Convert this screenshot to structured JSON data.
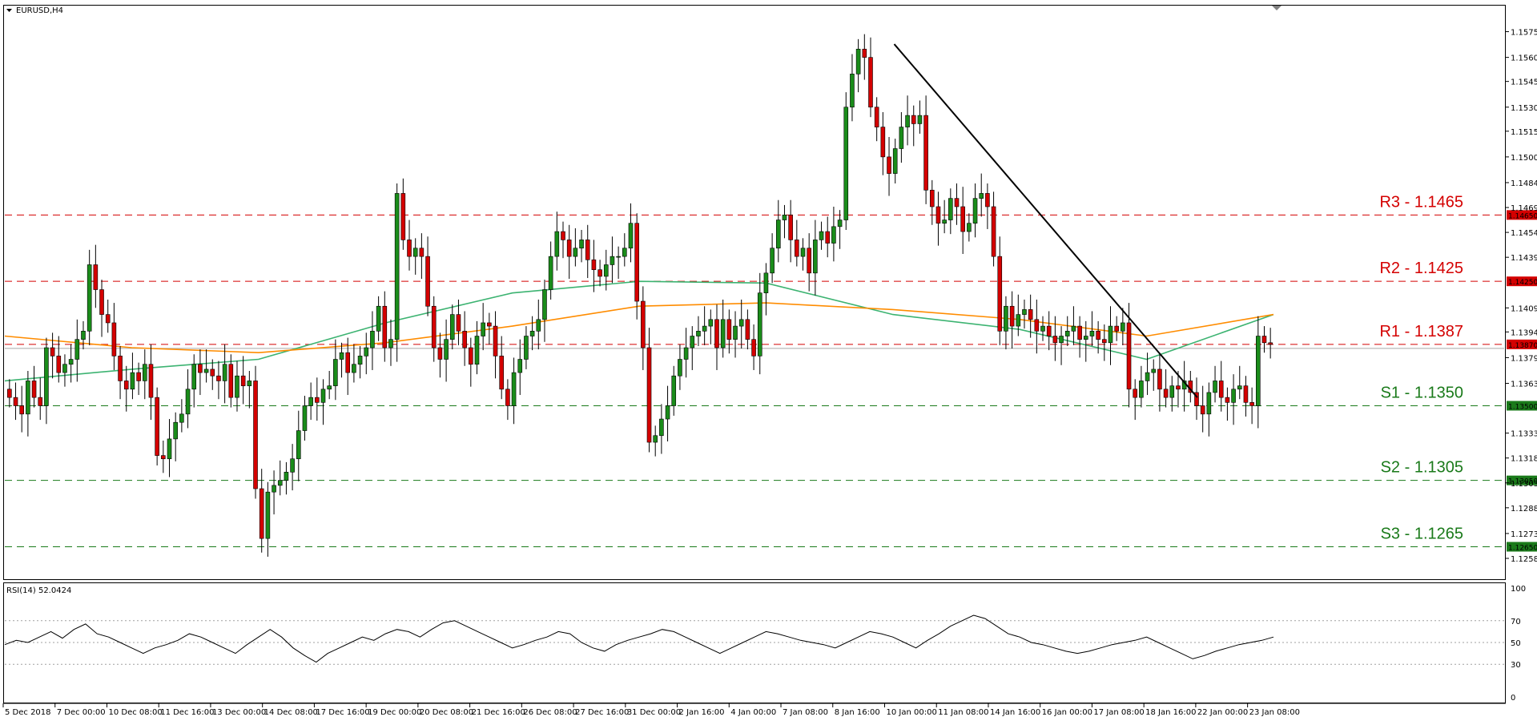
{
  "chart_data": {
    "type": "candlestick",
    "symbol_title": "EURUSD,H4",
    "indicator_title": "RSI(14) 52.0424",
    "price_axis_ticks": [
      "1.15755",
      "1.15600",
      "1.15455",
      "1.15300",
      "1.15155",
      "1.15000",
      "1.14845",
      "1.14695",
      "1.14545",
      "1.14395",
      "1.14090",
      "1.13945",
      "1.13790",
      "1.13635",
      "1.13335",
      "1.13185",
      "1.13035",
      "1.12885",
      "1.12730",
      "1.12580"
    ],
    "ylim": [
      1.1258,
      1.1583
    ],
    "rsi_ticks": [
      "100",
      "70",
      "50",
      "30",
      "0"
    ],
    "rsi_levels": [
      70,
      50,
      30
    ],
    "x_labels": [
      "5 Dec 2018",
      "7 Dec 00:00",
      "10 Dec 08:00",
      "11 Dec 16:00",
      "13 Dec 00:00",
      "14 Dec 08:00",
      "17 Dec 16:00",
      "19 Dec 00:00",
      "20 Dec 08:00",
      "21 Dec 16:00",
      "26 Dec 08:00",
      "27 Dec 16:00",
      "31 Dec 00:00",
      "2 Jan 16:00",
      "4 Jan 00:00",
      "7 Jan 08:00",
      "8 Jan 16:00",
      "10 Jan 00:00",
      "11 Jan 08:00",
      "14 Jan 16:00",
      "16 Jan 00:00",
      "17 Jan 08:00",
      "18 Jan 16:00",
      "22 Jan 00:00",
      "23 Jan 08:00"
    ],
    "current_price": {
      "label": "1.13870",
      "value": 1.1387
    },
    "levels": [
      {
        "label": "R3 - 1.1465",
        "value": 1.1465,
        "tag": "1.14650",
        "kind": "resistance"
      },
      {
        "label": "R2 - 1.1425",
        "value": 1.1425,
        "tag": "1.14250",
        "kind": "resistance"
      },
      {
        "label": "R1 - 1.1387",
        "value": 1.1387,
        "tag": "1.13870",
        "kind": "resistance"
      },
      {
        "label": "S1 - 1.1350",
        "value": 1.135,
        "tag": "1.13500",
        "kind": "support"
      },
      {
        "label": "S2 - 1.1305",
        "value": 1.1305,
        "tag": "1.13050",
        "kind": "support"
      },
      {
        "label": "S3 - 1.1265",
        "value": 1.1265,
        "tag": "1.12650",
        "kind": "support"
      }
    ],
    "closes": [
      1.1355,
      1.135,
      1.1345,
      1.1365,
      1.1355,
      1.135,
      1.1385,
      1.138,
      1.137,
      1.1375,
      1.1378,
      1.139,
      1.1395,
      1.1435,
      1.142,
      1.1405,
      1.14,
      1.138,
      1.1365,
      1.136,
      1.137,
      1.1365,
      1.1375,
      1.1355,
      1.132,
      1.1318,
      1.133,
      1.134,
      1.1345,
      1.136,
      1.1375,
      1.137,
      1.1372,
      1.1368,
      1.1365,
      1.1375,
      1.1355,
      1.1368,
      1.1362,
      1.1365,
      1.13,
      1.127,
      1.1298,
      1.1302,
      1.1305,
      1.131,
      1.1318,
      1.1335,
      1.135,
      1.1355,
      1.1352,
      1.136,
      1.1362,
      1.1378,
      1.1382,
      1.137,
      1.1375,
      1.138,
      1.1385,
      1.1395,
      1.141,
      1.1385,
      1.139,
      1.1478,
      1.145,
      1.144,
      1.1445,
      1.144,
      1.141,
      1.1385,
      1.1378,
      1.139,
      1.1405,
      1.1395,
      1.1385,
      1.1375,
      1.1392,
      1.14,
      1.1398,
      1.138,
      1.136,
      1.135,
      1.137,
      1.1378,
      1.1392,
      1.1395,
      1.1402,
      1.142,
      1.144,
      1.1455,
      1.145,
      1.144,
      1.1445,
      1.145,
      1.1438,
      1.1432,
      1.1428,
      1.1435,
      1.144,
      1.144,
      1.1445,
      1.146,
      1.1413,
      1.1385,
      1.1328,
      1.1332,
      1.1342,
      1.135,
      1.1368,
      1.1378,
      1.1385,
      1.1392,
      1.1395,
      1.1398,
      1.1402,
      1.1385,
      1.1402,
      1.139,
      1.1398,
      1.1402,
      1.139,
      1.138,
      1.1418,
      1.143,
      1.1445,
      1.1462,
      1.1465,
      1.145,
      1.144,
      1.1445,
      1.143,
      1.145,
      1.1455,
      1.1448,
      1.1458,
      1.1462,
      1.153,
      1.155,
      1.1565,
      1.156,
      1.153,
      1.1518,
      1.15,
      1.149,
      1.1505,
      1.1518,
      1.1525,
      1.152,
      1.1525,
      1.148,
      1.147,
      1.146,
      1.1462,
      1.1475,
      1.147,
      1.1455,
      1.146,
      1.1475,
      1.1478,
      1.147,
      1.144,
      1.1395,
      1.141,
      1.1398,
      1.1405,
      1.1408,
      1.1402,
      1.1395,
      1.1398,
      1.1392,
      1.1388,
      1.1392,
      1.1395,
      1.1398,
      1.139,
      1.1392,
      1.1395,
      1.139,
      1.1388,
      1.1398,
      1.1395,
      1.14,
      1.136,
      1.1355,
      1.1365,
      1.137,
      1.1372,
      1.136,
      1.1355,
      1.1362,
      1.136,
      1.1365,
      1.1358,
      1.135,
      1.1345,
      1.1358,
      1.1365,
      1.1355,
      1.1352,
      1.136,
      1.1362,
      1.1352,
      1.135,
      1.1392,
      1.1388,
      1.1387
    ],
    "moving_averages": [
      {
        "name": "MA fast",
        "color": "#3cb371",
        "values": [
          1.1365,
          1.1372,
          1.1378,
          1.14,
          1.1418,
          1.1425,
          1.1424,
          1.1405,
          1.1396,
          1.1378,
          1.1405
        ]
      },
      {
        "name": "MA slow",
        "color": "#ff8c00",
        "values": [
          1.1392,
          1.1385,
          1.1382,
          1.1388,
          1.1398,
          1.141,
          1.1412,
          1.1408,
          1.1402,
          1.1392,
          1.1405
        ]
      }
    ],
    "trendline": [
      {
        "x_label": "10 Jan 00:00",
        "y": 1.1568
      },
      {
        "x_label": "22 Jan 00:00",
        "y": 1.1355
      }
    ],
    "rsi_values": [
      48,
      52,
      50,
      55,
      60,
      54,
      62,
      67,
      58,
      55,
      50,
      45,
      40,
      45,
      48,
      52,
      58,
      55,
      50,
      45,
      40,
      48,
      55,
      62,
      55,
      45,
      38,
      32,
      40,
      45,
      50,
      55,
      52,
      58,
      62,
      60,
      55,
      62,
      68,
      70,
      65,
      60,
      55,
      50,
      45,
      48,
      52,
      55,
      60,
      58,
      50,
      45,
      42,
      48,
      52,
      55,
      58,
      62,
      60,
      55,
      50,
      45,
      40,
      45,
      50,
      55,
      60,
      58,
      55,
      52,
      50,
      48,
      45,
      50,
      55,
      60,
      58,
      55,
      50,
      45,
      52,
      58,
      65,
      70,
      75,
      72,
      65,
      58,
      55,
      50,
      48,
      45,
      42,
      40,
      42,
      45,
      48,
      50,
      52,
      55,
      50,
      45,
      40,
      35,
      38,
      42,
      45,
      48,
      50,
      52,
      55
    ]
  }
}
